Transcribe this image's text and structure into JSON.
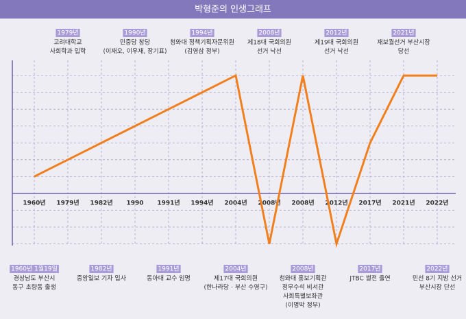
{
  "chart_data": {
    "type": "line",
    "title": "박형준의 인생그래프",
    "categories": [
      "1960년",
      "1979년",
      "1982년",
      "1990",
      "1991년",
      "1994년",
      "2004년",
      "2008년",
      "2008년",
      "2012년",
      "2017년",
      "2021년",
      "2022년"
    ],
    "values": [
      1,
      2,
      3,
      4,
      5,
      6,
      7,
      -3,
      7,
      -3,
      3,
      7,
      7
    ],
    "color": "#f07f1e",
    "ylim": [
      -3.1,
      7.9
    ],
    "yticks": [
      -3,
      -2,
      -1,
      1,
      2,
      3,
      4,
      5,
      6,
      7
    ],
    "grid": true,
    "annotations": [
      {
        "label": "1960년 1월19일",
        "text": [
          "경상남도 부산시",
          "동구 초량동 출생"
        ]
      },
      {
        "label": "1979년",
        "text": [
          "고려대학교",
          "사회학과 입학"
        ]
      },
      {
        "label": "1982년",
        "text": [
          "중앙일보 기자 입사"
        ]
      },
      {
        "label": "1990년",
        "text": [
          "민중당 창당",
          "(이재오, 이우재, 장기표)"
        ]
      },
      {
        "label": "1991년",
        "text": [
          "동아대 교수 임명"
        ]
      },
      {
        "label": "1994년",
        "text": [
          "청와대 정책기획자문위원",
          "(김영삼 정부)"
        ]
      },
      {
        "label": "2004년",
        "text": [
          "제17대 국회의원",
          "(한나라당 · 부산 수영구)"
        ]
      },
      {
        "label": "2008년",
        "text": [
          "제18대 국회의원",
          "선거 낙선"
        ]
      },
      {
        "label": "2008년",
        "text": [
          "청와대 홍보기획관",
          "정무수석 비서관",
          "사회특별보좌관",
          "(이명박 정부)"
        ]
      },
      {
        "label": "2012년",
        "text": [
          "제19대 국회의원",
          "선거 낙선"
        ]
      },
      {
        "label": "2017년",
        "text": [
          "JTBC 썰전 출연"
        ]
      },
      {
        "label": "2021년",
        "text": [
          "재보궐선거 부산시장",
          "당선"
        ]
      },
      {
        "label": "2022년",
        "text": [
          "민선 8기 지방 선거",
          "부산시장 단선"
        ]
      }
    ]
  }
}
